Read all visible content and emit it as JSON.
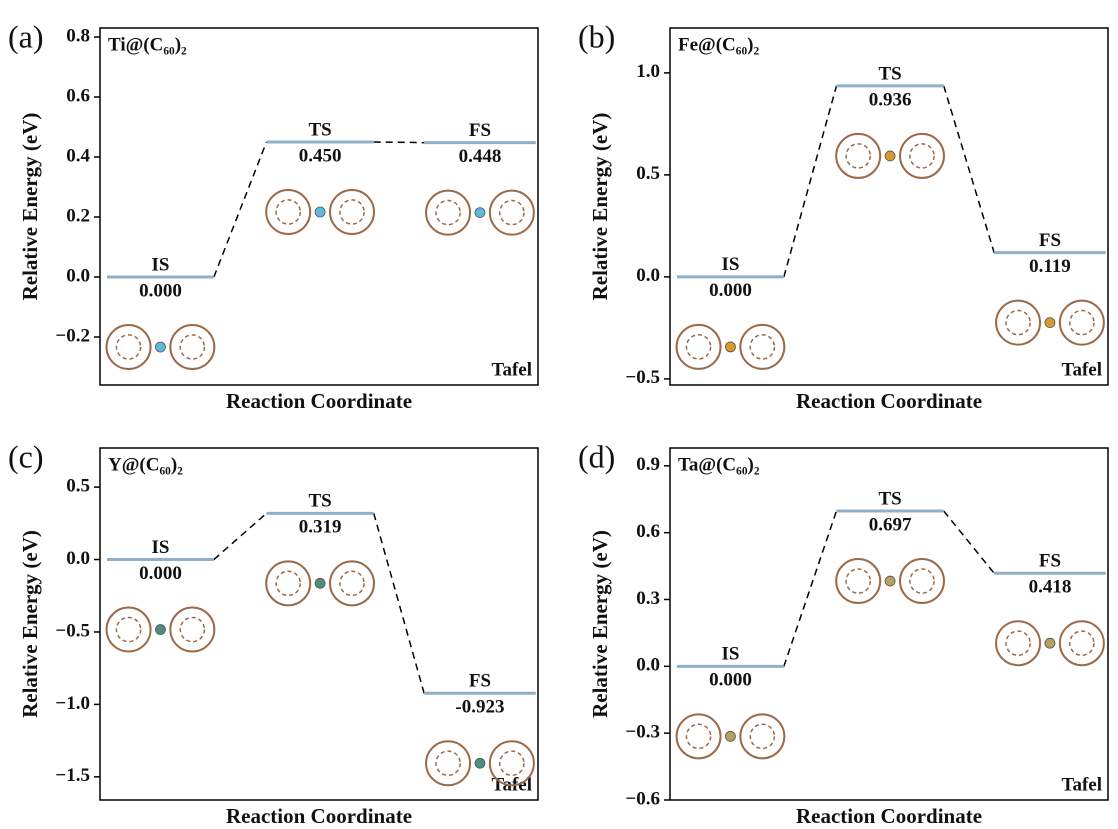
{
  "chart_data": [
    {
      "type": "energy",
      "panel": "(a)",
      "title": "Ti@(C₆₀)₂",
      "annotation": "Tafel",
      "xlabel": "Reaction Coordinate",
      "ylabel": "Relative Energy (eV)",
      "categories": [
        "IS",
        "TS",
        "FS"
      ],
      "values": [
        0.0,
        0.45,
        0.448
      ],
      "value_labels": [
        "0.000",
        "0.450",
        "0.448"
      ],
      "color": "#8fb0c8",
      "atom_color": "#62b8dc",
      "ylim": [
        -0.36,
        0.83
      ],
      "yticks": [
        {
          "value": -0.2,
          "label": "−0.2"
        },
        {
          "value": 0,
          "label": "0.0"
        },
        {
          "value": 0.2,
          "label": "0.2"
        },
        {
          "value": 0.4,
          "label": "0.4"
        },
        {
          "value": 0.6,
          "label": "0.6"
        },
        {
          "value": 0.8,
          "label": "0.8"
        }
      ]
    },
    {
      "type": "energy",
      "panel": "(b)",
      "title": "Fe@(C₆₀)₂",
      "annotation": "Tafel",
      "xlabel": "Reaction Coordinate",
      "ylabel": "Relative Energy (eV)",
      "categories": [
        "IS",
        "TS",
        "FS"
      ],
      "values": [
        0.0,
        0.936,
        0.119
      ],
      "value_labels": [
        "0.000",
        "0.936",
        "0.119"
      ],
      "color": "#8fb0c8",
      "atom_color": "#d89a2c",
      "ylim": [
        -0.53,
        1.22
      ],
      "yticks": [
        {
          "value": -0.5,
          "label": "−0.5"
        },
        {
          "value": 0,
          "label": "0.0"
        },
        {
          "value": 0.5,
          "label": "0.5"
        },
        {
          "value": 1,
          "label": "1.0"
        }
      ]
    },
    {
      "type": "energy",
      "panel": "(c)",
      "title": "Y@(C₆₀)₂",
      "annotation": "Tafel",
      "xlabel": "Reaction Coordinate",
      "ylabel": "Relative Energy (eV)",
      "categories": [
        "IS",
        "TS",
        "FS"
      ],
      "values": [
        0.0,
        0.319,
        -0.923
      ],
      "value_labels": [
        "0.000",
        "0.319",
        "-0.923"
      ],
      "color": "#8fb0c8",
      "atom_color": "#4e8c86",
      "ylim": [
        -1.66,
        0.77
      ],
      "yticks": [
        {
          "value": -1.5,
          "label": "−1.5"
        },
        {
          "value": -1,
          "label": "−1.0"
        },
        {
          "value": -0.5,
          "label": "−0.5"
        },
        {
          "value": 0,
          "label": "0.0"
        },
        {
          "value": 0.5,
          "label": "0.5"
        }
      ]
    },
    {
      "type": "energy",
      "panel": "(d)",
      "title": "Ta@(C₆₀)₂",
      "annotation": "Tafel",
      "xlabel": "Reaction Coordinate",
      "ylabel": "Relative Energy (eV)",
      "categories": [
        "IS",
        "TS",
        "FS"
      ],
      "values": [
        0.0,
        0.697,
        0.418
      ],
      "value_labels": [
        "0.000",
        "0.697",
        "0.418"
      ],
      "color": "#8fb0c8",
      "atom_color": "#b8a060",
      "ylim": [
        -0.6,
        0.98
      ],
      "yticks": [
        {
          "value": -0.6,
          "label": "−0.6"
        },
        {
          "value": -0.3,
          "label": "−0.3"
        },
        {
          "value": 0,
          "label": "0.0"
        },
        {
          "value": 0.3,
          "label": "0.3"
        },
        {
          "value": 0.6,
          "label": "0.6"
        },
        {
          "value": 0.9,
          "label": "0.9"
        }
      ]
    }
  ]
}
